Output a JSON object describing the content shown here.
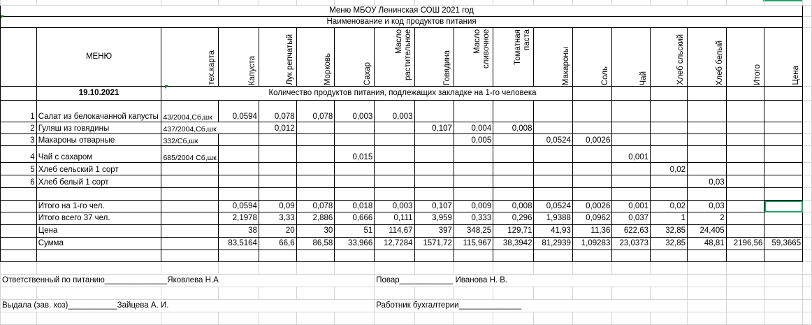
{
  "title": "Меню  МБОУ  Ленинская СОШ       2021 год",
  "subtitle": "Наименование и код продуктов питания",
  "header": {
    "menu": "МЕНЮ",
    "columns": [
      "тех.карта",
      "Капуста",
      "Лук репчатый",
      "Морковь",
      "Сахар",
      "Масло растительное",
      "Говядина",
      "Масло сливочное",
      "Томатная паста",
      "Макароны",
      "Соль",
      "Чай",
      "Хлеб сльский",
      "Хлеб белый",
      "Итого",
      "Цена"
    ]
  },
  "date": "19.10.2021",
  "note": "Количество продуктов питания, подлежащих закладке на 1-го человека",
  "dishes": [
    {
      "n": "1",
      "name": "Салат из белокачанной капусты",
      "card": "43/2004,Сб,шк",
      "values": [
        "0,0594",
        "0,078",
        "0,078",
        "0,003",
        "0,003",
        "",
        "",
        "",
        "",
        "",
        "",
        "",
        "",
        "",
        ""
      ]
    },
    {
      "n": "2",
      "name": "Гуляш из говядины",
      "card": "437/2004,Сб,шк",
      "values": [
        "",
        "0,012",
        "",
        "",
        "",
        "0,107",
        "0,004",
        "0,008",
        "",
        "",
        "",
        "",
        "",
        "",
        ""
      ]
    },
    {
      "n": "3",
      "name": "Макароны отварные",
      "card": "332/Сб,шк",
      "values": [
        "",
        "",
        "",
        "",
        "",
        "",
        "0,005",
        "",
        "0,0524",
        "0,0026",
        "",
        "",
        "",
        "",
        ""
      ]
    },
    {
      "n": "4",
      "name": "Чай с сахаром",
      "card": "685/2004 Сб,шк",
      "values": [
        "",
        "",
        "",
        "0,015",
        "",
        "",
        "",
        "",
        "",
        "",
        "0,001",
        "",
        "",
        "",
        ""
      ]
    },
    {
      "n": "5",
      "name": "Хлеб сельский 1 сорт",
      "card": "",
      "values": [
        "",
        "",
        "",
        "",
        "",
        "",
        "",
        "",
        "",
        "",
        "",
        "0,02",
        "",
        "",
        ""
      ]
    },
    {
      "n": "6",
      "name": "Хлеб белый 1 сорт",
      "card": "",
      "values": [
        "",
        "",
        "",
        "",
        "",
        "",
        "",
        "",
        "",
        "",
        "",
        "",
        "0,03",
        "",
        ""
      ]
    }
  ],
  "totals": [
    {
      "label": "Итого на 1-го чел.",
      "values": [
        "0,0594",
        "0,09",
        "0,078",
        "0,018",
        "0,003",
        "0,107",
        "0,009",
        "0,008",
        "0,0524",
        "0,0026",
        "0,001",
        "0,02",
        "0,03",
        "",
        ""
      ]
    },
    {
      "label": "Итого  всего 37 чел.",
      "values": [
        "2,1978",
        "3,33",
        "2,886",
        "0,666",
        "0,111",
        "3,959",
        "0,333",
        "0,296",
        "1,9388",
        "0,0962",
        "0,037",
        "1",
        "2",
        "",
        ""
      ]
    },
    {
      "label": "Цена",
      "values": [
        "38",
        "20",
        "30",
        "51",
        "114,67",
        "397",
        "348,25",
        "129,71",
        "41,93",
        "11,36",
        "622,63",
        "32,85",
        "24,405",
        "",
        ""
      ]
    },
    {
      "label": "Сумма",
      "values": [
        "83,5164",
        "66,6",
        "86,58",
        "33,966",
        "12,7284",
        "1571,72",
        "115,967",
        "38,3942",
        "81,2939",
        "1,09283",
        "23,0373",
        "32,85",
        "48,81",
        "2196,56",
        "59,3665"
      ]
    }
  ],
  "footer": {
    "responsible": "Ответственный по питанию______________Яковлева Н.А",
    "cook": "Повар____________ Иванова Н. В.",
    "issued": "Выдала (зав. хоз)___________Зайцева А. И.",
    "accountant": "Работник  бухгалтерии______________"
  },
  "colors": {
    "selection": "#21a366",
    "gridline": "#d4d4d4",
    "border": "#000000"
  }
}
